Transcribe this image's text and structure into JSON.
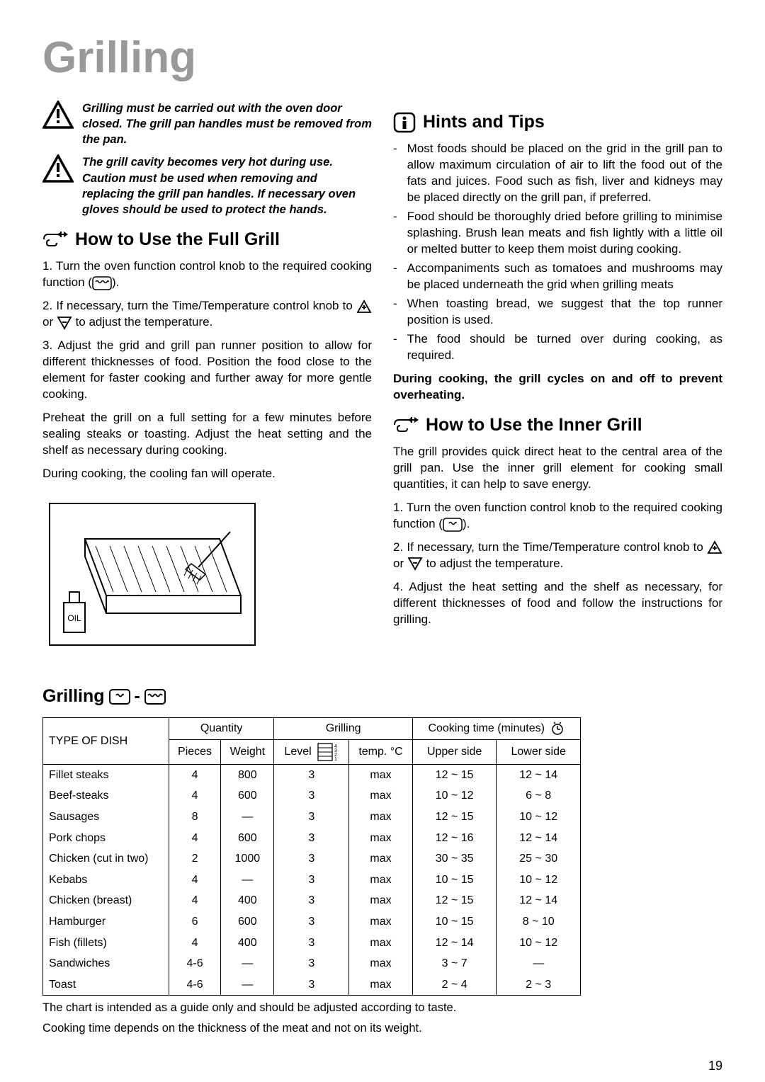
{
  "title": "Grilling",
  "warnings": [
    "Grilling must be carried out with the oven door closed. The grill pan handles must be removed from the pan.",
    "The grill cavity becomes very hot during use. Caution must be used when removing and replacing the grill pan handles. If necessary oven gloves should be used to protect the hands."
  ],
  "full_grill": {
    "heading": "How to Use the Full Grill",
    "steps": [
      "Turn the oven function control knob to the required cooking function (",
      "If necessary, turn the Time/Temperature control knob to ",
      "Adjust the grid and grill pan runner position to allow for different thicknesses of food. Position the food close to the element for faster cooking and further away for more gentle cooking."
    ],
    "step2_mid": " or ",
    "step2_end": " to adjust the temperature.",
    "step1_end": ").",
    "para1": "Preheat the grill on a full setting for a few minutes before sealing steaks or toasting. Adjust the heat setting and the shelf as necessary during cooking.",
    "para2": "During cooking, the cooling fan will operate."
  },
  "hints": {
    "heading": "Hints and Tips",
    "items": [
      "Most foods should be placed on the grid in the grill pan to allow maximum circulation of air to lift the food out of the fats and juices. Food such as fish, liver and kidneys may be placed directly on the grill pan, if preferred.",
      "Food should be thoroughly dried before grilling to minimise splashing. Brush lean meats and fish lightly with a little oil or melted butter to keep them moist during cooking.",
      "Accompaniments such as tomatoes and mushrooms may be placed underneath the grid when grilling meats",
      "When toasting bread, we suggest that the top runner position is used.",
      "The food should be turned over during cooking, as required."
    ],
    "note": "During cooking, the grill cycles on and off to prevent overheating."
  },
  "inner_grill": {
    "heading": "How to Use the Inner Grill",
    "intro": "The grill provides quick direct heat to the central area of the grill pan. Use the inner grill element for cooking small quantities, it can help to save energy.",
    "step1a": "Turn the oven function control knob to the required cooking function (",
    "step1b": ").",
    "step2a": "If necessary, turn the Time/Temperature control knob to ",
    "step2b": " or ",
    "step2c": " to adjust the temperature.",
    "step4": "Adjust the heat setting and the shelf as necessary, for different thicknesses of food and follow the instructions for grilling."
  },
  "table_section": {
    "heading": "Grilling",
    "headers": {
      "dish": "TYPE OF DISH",
      "qty": "Quantity",
      "grilling": "Grilling",
      "cooktime": "Cooking time (minutes)",
      "pieces": "Pieces",
      "weight": "Weight",
      "level": "Level",
      "temp": "temp. °C",
      "upper": "Upper side",
      "lower": "Lower side"
    },
    "rows": [
      {
        "dish": "Fillet steaks",
        "pieces": "4",
        "weight": "800",
        "level": "3",
        "temp": "max",
        "upper": "12 ~ 15",
        "lower": "12 ~ 14"
      },
      {
        "dish": "Beef-steaks",
        "pieces": "4",
        "weight": "600",
        "level": "3",
        "temp": "max",
        "upper": "10 ~ 12",
        "lower": "6 ~ 8"
      },
      {
        "dish": "Sausages",
        "pieces": "8",
        "weight": "—",
        "level": "3",
        "temp": "max",
        "upper": "12 ~ 15",
        "lower": "10 ~ 12"
      },
      {
        "dish": "Pork chops",
        "pieces": "4",
        "weight": "600",
        "level": "3",
        "temp": "max",
        "upper": "12 ~ 16",
        "lower": "12 ~ 14"
      },
      {
        "dish": "Chicken (cut in two)",
        "pieces": "2",
        "weight": "1000",
        "level": "3",
        "temp": "max",
        "upper": "30 ~ 35",
        "lower": "25 ~ 30"
      },
      {
        "dish": "Kebabs",
        "pieces": "4",
        "weight": "—",
        "level": "3",
        "temp": "max",
        "upper": "10 ~ 15",
        "lower": "10 ~ 12"
      },
      {
        "dish": "Chicken (breast)",
        "pieces": "4",
        "weight": "400",
        "level": "3",
        "temp": "max",
        "upper": "12 ~ 15",
        "lower": "12 ~ 14"
      },
      {
        "dish": "Hamburger",
        "pieces": "6",
        "weight": "600",
        "level": "3",
        "temp": "max",
        "upper": "10 ~ 15",
        "lower": "8 ~ 10"
      },
      {
        "dish": "Fish (fillets)",
        "pieces": "4",
        "weight": "400",
        "level": "3",
        "temp": "max",
        "upper": "12 ~ 14",
        "lower": "10 ~ 12"
      },
      {
        "dish": "Sandwiches",
        "pieces": "4-6",
        "weight": "—",
        "level": "3",
        "temp": "max",
        "upper": "3 ~ 7",
        "lower": "—"
      },
      {
        "dish": "Toast",
        "pieces": "4-6",
        "weight": "—",
        "level": "3",
        "temp": "max",
        "upper": "2 ~ 4",
        "lower": "2 ~ 3"
      }
    ],
    "footnote1": "The chart is intended as a guide only and should be adjusted according to taste.",
    "footnote2": "Cooking time depends on the thickness of the meat and not on its weight."
  },
  "page": "19"
}
